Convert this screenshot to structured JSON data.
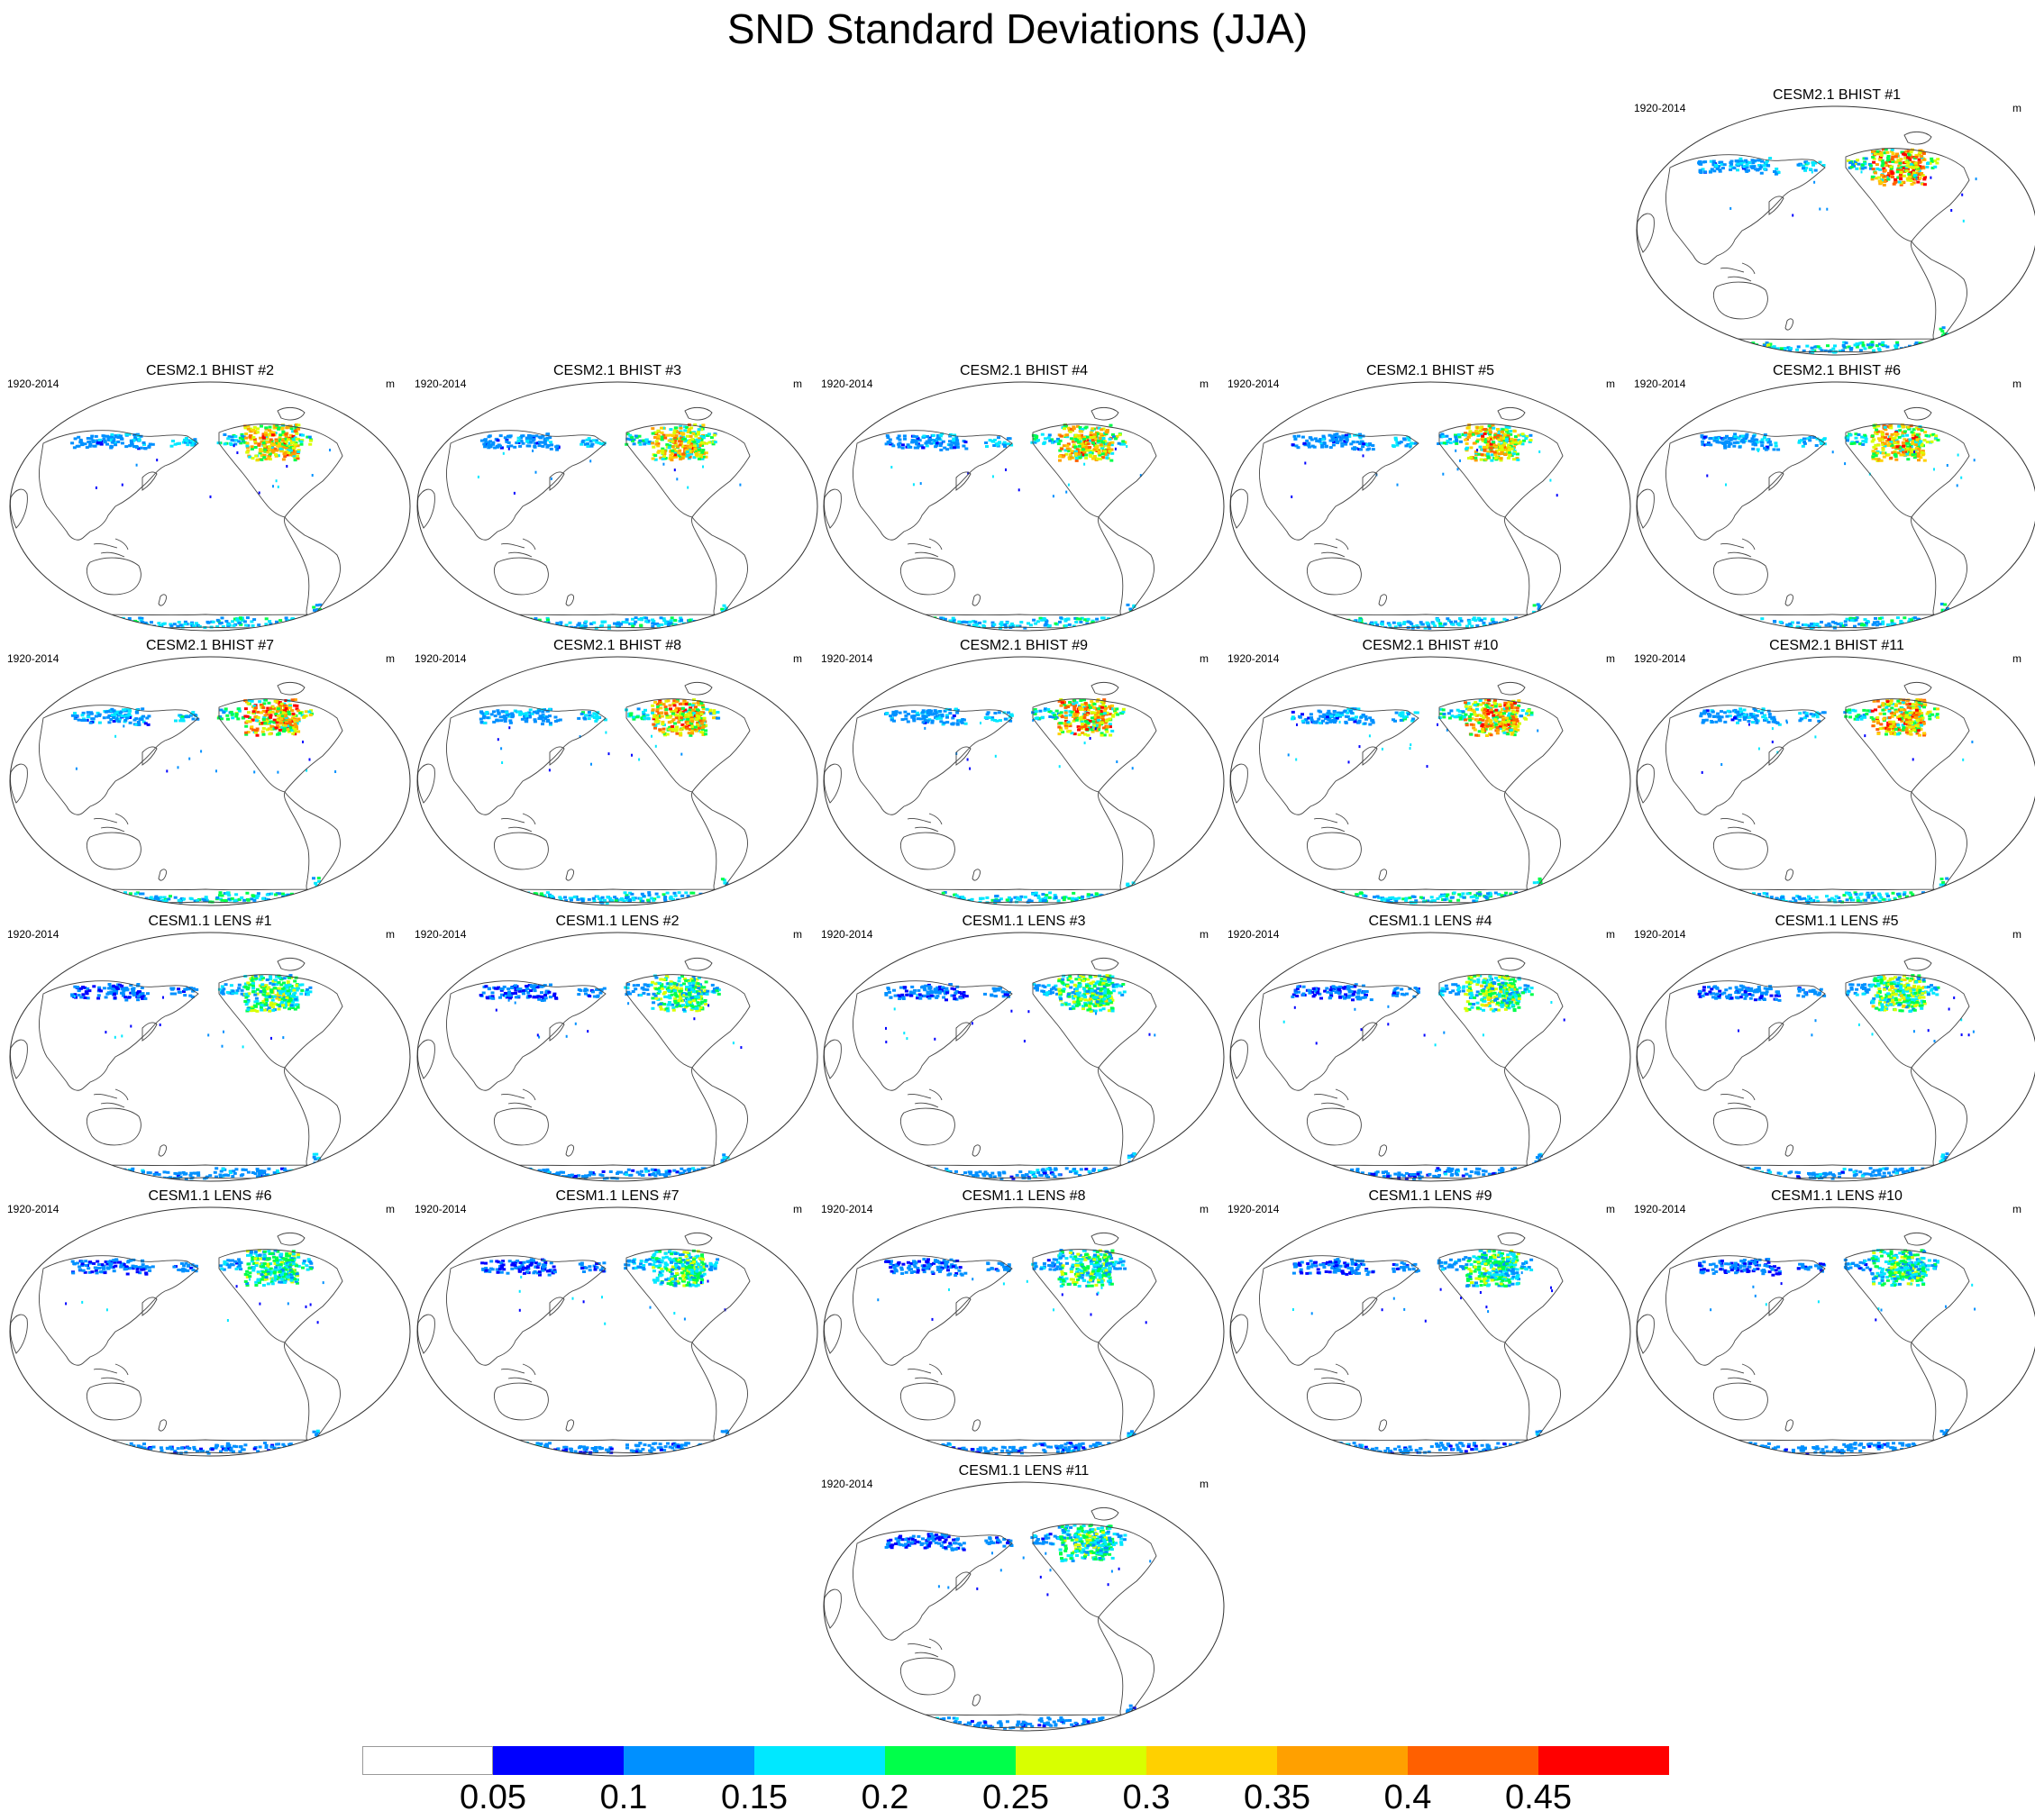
{
  "title": "SND Standard Deviations (JJA)",
  "period": "1920-2014",
  "units": "m",
  "panels": [
    {
      "label": "CESM2.1 BHIST #1",
      "row": 0,
      "col": 4,
      "intensity": 0.95
    },
    {
      "label": "CESM2.1 BHIST #2",
      "row": 1,
      "col": 0,
      "intensity": 0.85
    },
    {
      "label": "CESM2.1 BHIST #3",
      "row": 1,
      "col": 1,
      "intensity": 0.8
    },
    {
      "label": "CESM2.1 BHIST #4",
      "row": 1,
      "col": 2,
      "intensity": 0.85
    },
    {
      "label": "CESM2.1 BHIST #5",
      "row": 1,
      "col": 3,
      "intensity": 0.8
    },
    {
      "label": "CESM2.1 BHIST #6",
      "row": 1,
      "col": 4,
      "intensity": 0.85
    },
    {
      "label": "CESM2.1 BHIST #7",
      "row": 2,
      "col": 0,
      "intensity": 0.95
    },
    {
      "label": "CESM2.1 BHIST #8",
      "row": 2,
      "col": 1,
      "intensity": 0.9
    },
    {
      "label": "CESM2.1 BHIST #9",
      "row": 2,
      "col": 2,
      "intensity": 0.9
    },
    {
      "label": "CESM2.1 BHIST #10",
      "row": 2,
      "col": 3,
      "intensity": 0.9
    },
    {
      "label": "CESM2.1 BHIST #11",
      "row": 2,
      "col": 4,
      "intensity": 0.9
    },
    {
      "label": "CESM1.1 LENS #1",
      "row": 3,
      "col": 0,
      "intensity": 0.5
    },
    {
      "label": "CESM1.1 LENS #2",
      "row": 3,
      "col": 1,
      "intensity": 0.5
    },
    {
      "label": "CESM1.1 LENS #3",
      "row": 3,
      "col": 2,
      "intensity": 0.5
    },
    {
      "label": "CESM1.1 LENS #4",
      "row": 3,
      "col": 3,
      "intensity": 0.5
    },
    {
      "label": "CESM1.1 LENS #5",
      "row": 3,
      "col": 4,
      "intensity": 0.55
    },
    {
      "label": "CESM1.1 LENS #6",
      "row": 4,
      "col": 0,
      "intensity": 0.45
    },
    {
      "label": "CESM1.1 LENS #7",
      "row": 4,
      "col": 1,
      "intensity": 0.45
    },
    {
      "label": "CESM1.1 LENS #8",
      "row": 4,
      "col": 2,
      "intensity": 0.45
    },
    {
      "label": "CESM1.1 LENS #9",
      "row": 4,
      "col": 3,
      "intensity": 0.45
    },
    {
      "label": "CESM1.1 LENS #10",
      "row": 4,
      "col": 4,
      "intensity": 0.45
    },
    {
      "label": "CESM1.1 LENS #11",
      "row": 5,
      "col": 2,
      "intensity": 0.45
    }
  ],
  "colorbar": {
    "labels": [
      "0.05",
      "0.1",
      "0.15",
      "0.2",
      "0.25",
      "0.3",
      "0.35",
      "0.4",
      "0.45"
    ],
    "colors": [
      "#ffffff",
      "#0000ff",
      "#0090ff",
      "#00e8ff",
      "#00ff4a",
      "#d8ff00",
      "#ffd000",
      "#ffa000",
      "#ff6000",
      "#ff0000"
    ]
  }
}
